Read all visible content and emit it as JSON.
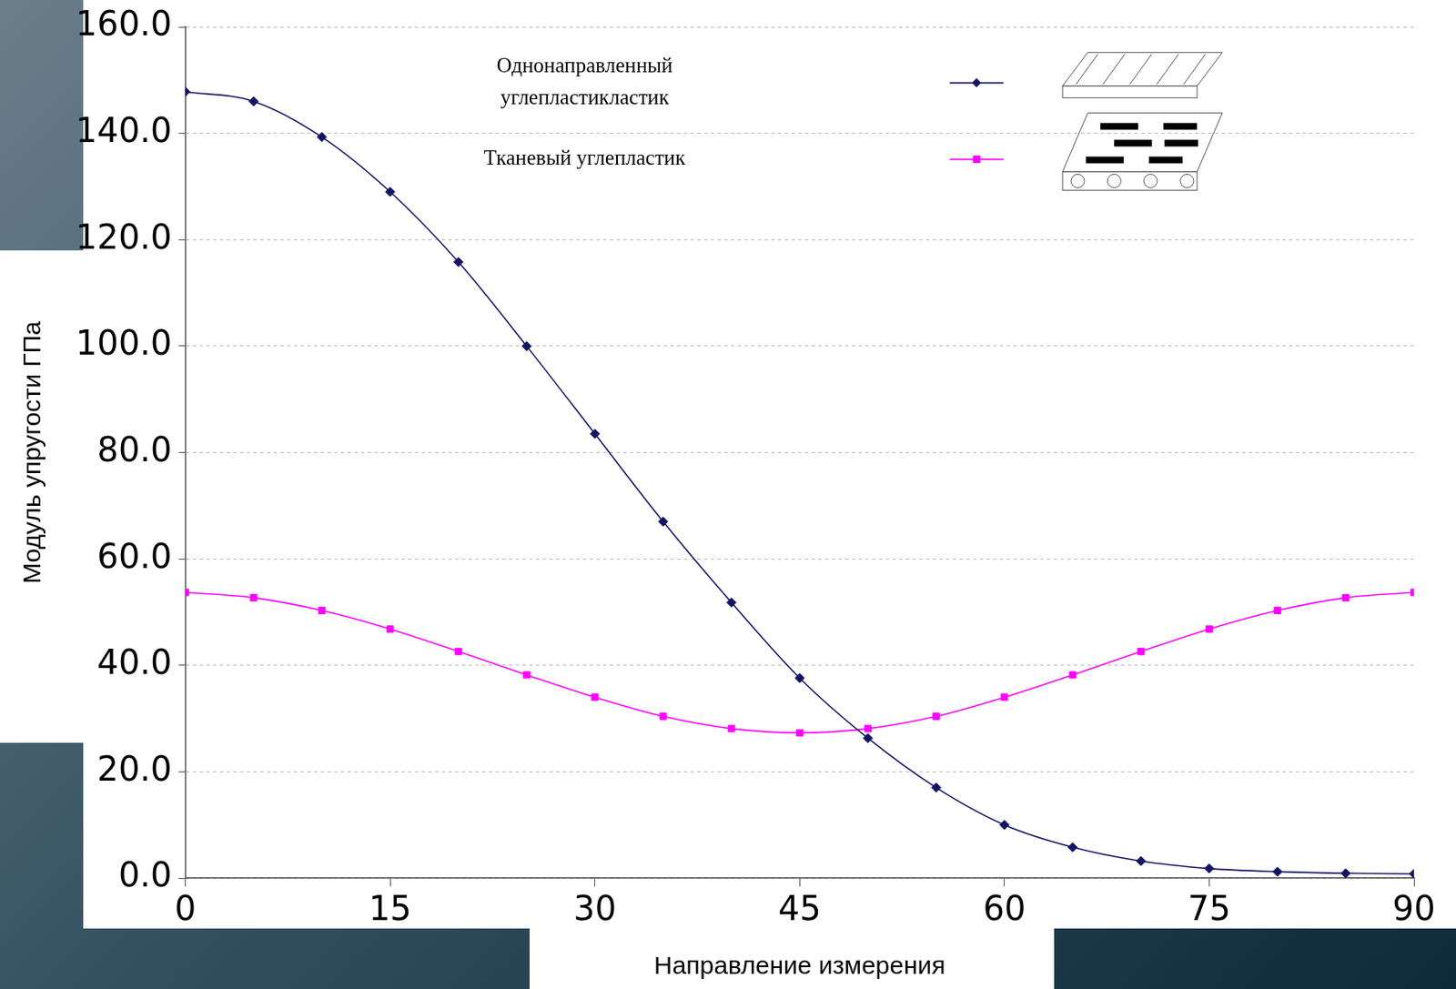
{
  "chart_data": {
    "type": "line",
    "xlabel": "Направление измерения",
    "ylabel": "Модуль упругости ГПа",
    "x": [
      0,
      5,
      10,
      15,
      20,
      25,
      30,
      35,
      40,
      45,
      50,
      55,
      60,
      65,
      70,
      75,
      80,
      85,
      90
    ],
    "series": [
      {
        "name": "Однонаправленный углепластикластик",
        "color": "#141464",
        "marker": "diamond",
        "line_style": "solid",
        "values": [
          147.8,
          146,
          139.3,
          129,
          115.8,
          100,
          83.5,
          67,
          51.8,
          37.6,
          26.3,
          17,
          10,
          5.8,
          3.2,
          1.8,
          1.2,
          0.9,
          0.8
        ]
      },
      {
        "name": "Тканевый углепластик",
        "color": "#ff00ff",
        "marker": "square",
        "line_style": "solid",
        "values": [
          53.7,
          52.7,
          50.3,
          46.8,
          42.6,
          38.2,
          34,
          30.4,
          28.1,
          27.3,
          28.1,
          30.4,
          34,
          38.2,
          42.6,
          46.8,
          50.3,
          52.7,
          53.7
        ]
      }
    ],
    "xlim": [
      0,
      90
    ],
    "xticks": [
      0,
      15,
      30,
      45,
      60,
      75,
      90
    ],
    "ylim": [
      0,
      160
    ],
    "yticks": [
      {
        "value": 0,
        "label": "0.0"
      },
      {
        "value": 20,
        "label": "20.0"
      },
      {
        "value": 40,
        "label": "40.0"
      },
      {
        "value": 60,
        "label": "60.0"
      },
      {
        "value": 80,
        "label": "80.0"
      },
      {
        "value": 100,
        "label": "100.0"
      },
      {
        "value": 120,
        "label": "120.0"
      },
      {
        "value": 140,
        "label": "140.0"
      },
      {
        "value": 160,
        "label": "160.0"
      }
    ],
    "grid": true,
    "legend": "top"
  }
}
